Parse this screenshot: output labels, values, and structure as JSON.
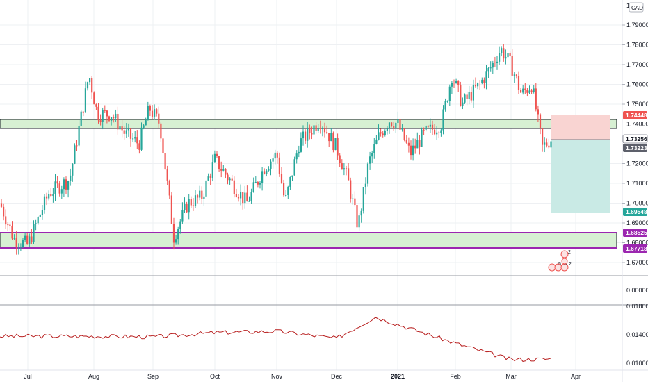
{
  "currency_badge": "CAD",
  "price_axis": {
    "ticks": [
      "1.79000",
      "1.78000",
      "1.77000",
      "1.76000",
      "1.75000",
      "1.74000",
      "1.72000",
      "1.71000",
      "1.70000",
      "1.69000",
      "1.68000",
      "1.67000"
    ],
    "top_partial": "1."
  },
  "price_tags": {
    "stop": "1.74448",
    "close": "1.73256",
    "entry": "1.73223",
    "target": "1.69548",
    "zone_top": "1.68525",
    "zone_bottom": "1.67718"
  },
  "indicator_axis": {
    "separator_value": "0.00000",
    "ticks": [
      "0.01800",
      "0.01400",
      "0.01000"
    ]
  },
  "time_axis": {
    "labels": [
      "Jul",
      "Aug",
      "Sep",
      "Oct",
      "Nov",
      "Dec",
      "2021",
      "Feb",
      "Mar",
      "Apr"
    ]
  },
  "colors": {
    "up": "#26a69a",
    "down": "#ef5350",
    "zone_fill": "#d7f0d3",
    "purple": "#9c27b0",
    "indicator": "#b71c1c",
    "tp_zone": "#c9eae5",
    "sl_zone": "#f9d4d2"
  },
  "chart_data": {
    "type": "candlestick",
    "symbol_currency": "CAD",
    "price_range": [
      1.667,
      1.8
    ],
    "indicator_range": [
      0.009,
      0.018
    ],
    "levels": {
      "resistance_zone": [
        1.7367,
        1.7412
      ],
      "support_zone": [
        1.6772,
        1.6852
      ],
      "short_position": {
        "entry": 1.73223,
        "stop": 1.74448,
        "target": 1.69548
      },
      "last_close": 1.73256
    },
    "candles_ohlc_anchor": [
      {
        "date": "Jul",
        "close": 1.679
      },
      {
        "date": "Aug",
        "close": 1.751
      },
      {
        "date": "Sep",
        "close": 1.744
      },
      {
        "date": "Oct",
        "close": 1.722
      },
      {
        "date": "Nov",
        "close": 1.718
      },
      {
        "date": "Dec",
        "close": 1.702
      },
      {
        "date": "2021",
        "close": 1.735
      },
      {
        "date": "Feb",
        "close": 1.755
      },
      {
        "date": "Mar",
        "close": 1.764
      },
      {
        "date": "Mar end",
        "close": 1.7326
      }
    ],
    "indicator_series": {
      "name": "",
      "x": [
        "Jul",
        "Aug",
        "Sep",
        "Oct",
        "Nov",
        "Dec",
        "2021",
        "Feb",
        "Mar"
      ],
      "values": [
        0.0138,
        0.0138,
        0.0137,
        0.0143,
        0.0145,
        0.0135,
        0.0165,
        0.0128,
        0.0105
      ]
    }
  }
}
